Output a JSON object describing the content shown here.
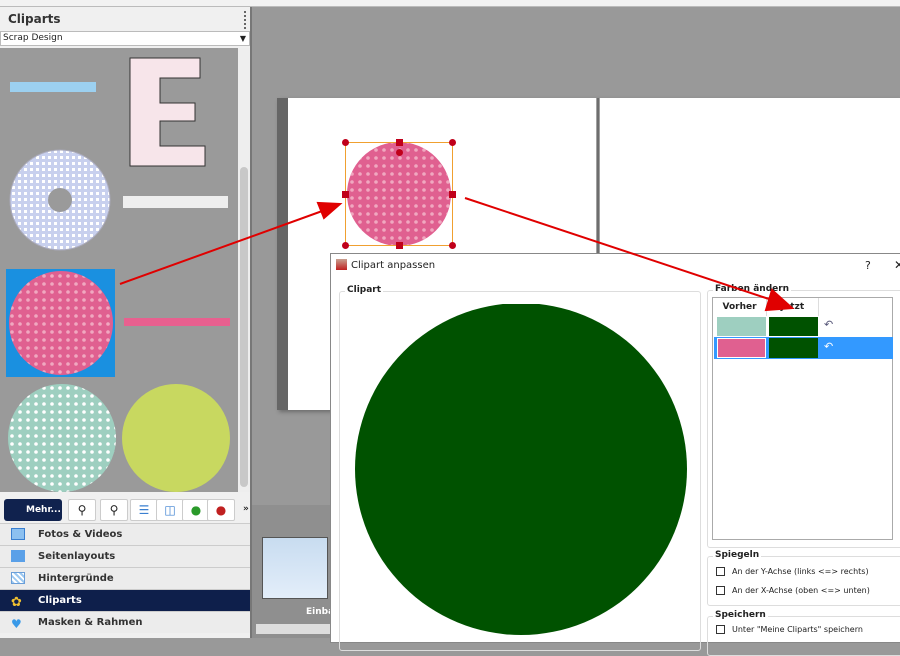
{
  "panel": {
    "title": "Cliparts",
    "category": "Scrap Design"
  },
  "toolbar": {
    "mehr_label": "Mehr...",
    "more": "»"
  },
  "nav": [
    {
      "label": "Fotos & Videos",
      "icon": "photo-icon"
    },
    {
      "label": "Seitenlayouts",
      "icon": "layout-icon"
    },
    {
      "label": "Hintergründe",
      "icon": "background-icon"
    },
    {
      "label": "Cliparts",
      "icon": "flower-icon",
      "active": true
    },
    {
      "label": "Masken & Rahmen",
      "icon": "heart-mask-icon"
    }
  ],
  "thumbnail": {
    "label": "Einba"
  },
  "dialog": {
    "title": "Clipart anpassen",
    "help": "?",
    "close": "✕",
    "clipart_group": "Clipart",
    "colors_group": "Farben ändern",
    "columns": [
      "Vorher",
      "Jetzt"
    ],
    "rows": [
      {
        "before": "#9ecfc0",
        "after": "#005200",
        "selected": false
      },
      {
        "before": "#e06090",
        "after": "#005200",
        "selected": true
      }
    ],
    "mirror_group": "Spiegeln",
    "mirror_y": "An der Y-Achse (links <=> rechts)",
    "mirror_x": "An der X-Achse (oben <=> unten)",
    "save_group": "Speichern",
    "save_mine": "Unter \"Meine Cliparts\" speichern"
  },
  "colors": {
    "accent": "#0e1f4b",
    "selection": "#3399ff",
    "clipart_fill": "#005200",
    "arrow": "#e00000"
  }
}
